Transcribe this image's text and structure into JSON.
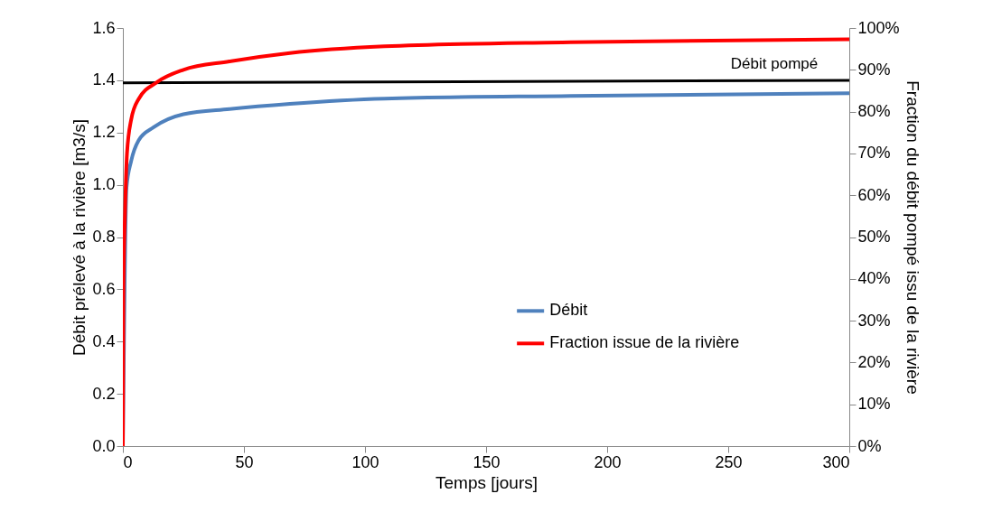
{
  "chart_data": {
    "type": "line",
    "xlabel": "Temps [jours]",
    "ylabel": "Débit prélevé à la rivière [m3/s]",
    "y2label": "Fraction du débit pompé issu de la rivière",
    "xlim": [
      0,
      300
    ],
    "xticks": [
      0,
      50,
      100,
      150,
      200,
      250,
      300
    ],
    "ylim": [
      0,
      1.6
    ],
    "yticks": [
      {
        "value": 0,
        "label": "0.0"
      },
      {
        "value": 0.2,
        "label": "0.2"
      },
      {
        "value": 0.4,
        "label": "0.4"
      },
      {
        "value": 0.6,
        "label": "0.6"
      },
      {
        "value": 0.8,
        "label": "0.8"
      },
      {
        "value": 1,
        "label": "1.0"
      },
      {
        "value": 1.2,
        "label": "1.2"
      },
      {
        "value": 1.4,
        "label": "1.4"
      },
      {
        "value": 1.6,
        "label": "1.6"
      }
    ],
    "y2lim": [
      0,
      100
    ],
    "y2ticks": [
      {
        "value": 0,
        "label": "0%"
      },
      {
        "value": 10,
        "label": "10%"
      },
      {
        "value": 20,
        "label": "20%"
      },
      {
        "value": 30,
        "label": "30%"
      },
      {
        "value": 40,
        "label": "40%"
      },
      {
        "value": 50,
        "label": "50%"
      },
      {
        "value": 60,
        "label": "60%"
      },
      {
        "value": 70,
        "label": "70%"
      },
      {
        "value": 80,
        "label": "80%"
      },
      {
        "value": 90,
        "label": "90%"
      },
      {
        "value": 100,
        "label": "100%"
      }
    ],
    "series": [
      {
        "name": "Débit",
        "color": "#4f81bd",
        "x": [
          0,
          1.5,
          3.4,
          6.5,
          12.7,
          25,
          44,
          69,
          108,
          185,
          300
        ],
        "values": [
          0,
          0.99,
          1.09,
          1.17,
          1.22,
          1.27,
          1.29,
          1.31,
          1.33,
          1.34,
          1.35
        ]
      },
      {
        "name": "Fraction issue de la rivière",
        "color": "#ff0000",
        "axis": "y2",
        "x": [
          0,
          0.25,
          0.9,
          1.7,
          3.4,
          6.5,
          14,
          25,
          44,
          69,
          108,
          185,
          300
        ],
        "values": [
          0,
          38,
          56,
          70,
          78,
          83,
          87,
          90,
          92,
          94,
          95.6,
          96.6,
          97.3
        ]
      },
      {
        "color": "#000000",
        "x": [
          0,
          300
        ],
        "values": [
          1.39,
          1.4
        ]
      }
    ],
    "annotations": [
      "Débit pompé"
    ],
    "legend": "right"
  }
}
